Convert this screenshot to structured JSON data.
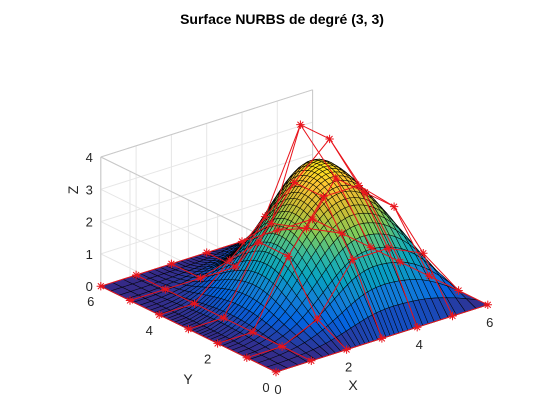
{
  "chart_data": {
    "type": "surface",
    "title": "Surface NURBS de degré (3, 3)",
    "xlabel": "X",
    "ylabel": "Y",
    "zlabel": "Z",
    "xlim": [
      0,
      6
    ],
    "ylim": [
      0,
      6
    ],
    "zlim": [
      0,
      4
    ],
    "xticks": [
      "0",
      "2",
      "4",
      "6"
    ],
    "yticks": [
      "0",
      "2",
      "4",
      "6"
    ],
    "zticks": [
      "0",
      "1",
      "2",
      "3",
      "4"
    ],
    "grid": true,
    "colormap": "parula",
    "control_points": {
      "x": [
        0,
        1,
        2,
        3,
        4,
        5,
        6
      ],
      "y": [
        0,
        1,
        2,
        3,
        4,
        5,
        6
      ],
      "z": [
        [
          0,
          0,
          0,
          0,
          0,
          0,
          0
        ],
        [
          0,
          0,
          0,
          0,
          0,
          0,
          0
        ],
        [
          0,
          0.5,
          2,
          2,
          1,
          0,
          0
        ],
        [
          0,
          2,
          3.5,
          3.5,
          2,
          0,
          0
        ],
        [
          0,
          2,
          3.5,
          4.5,
          4.5,
          1,
          0
        ],
        [
          0,
          1.5,
          2.5,
          2.5,
          2.5,
          0.5,
          0
        ],
        [
          0,
          0,
          0,
          0,
          0,
          0,
          0
        ]
      ]
    },
    "marker": "*",
    "control_net_color": "#e8141c",
    "edge_color": "#000000"
  }
}
